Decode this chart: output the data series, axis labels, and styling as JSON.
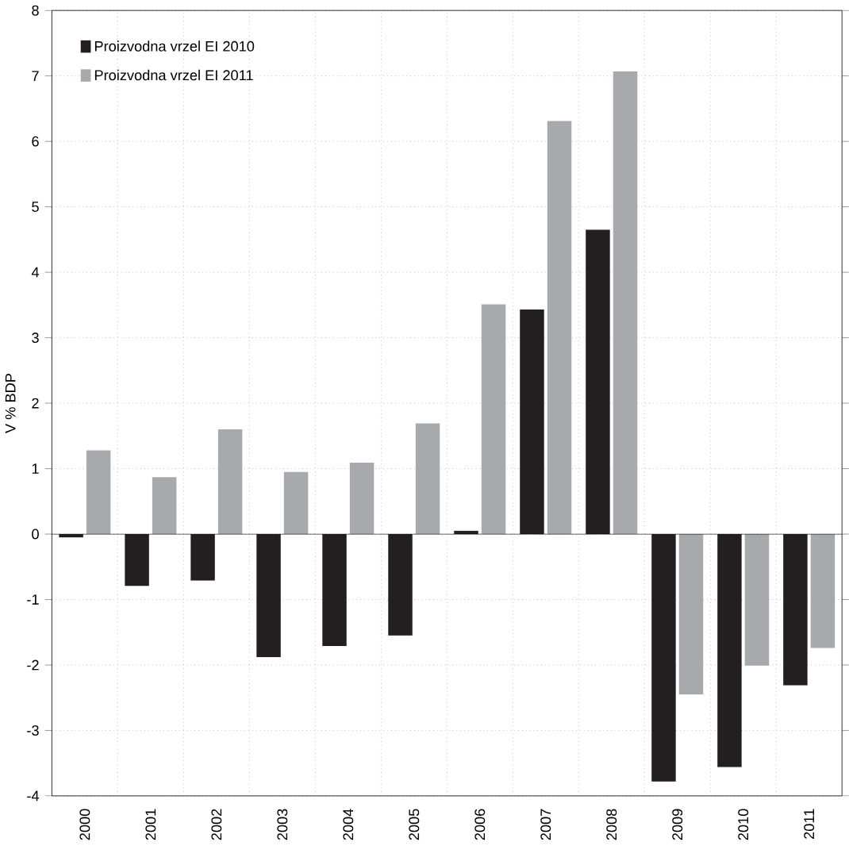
{
  "chart_data": {
    "type": "bar",
    "ylabel": "V % BDP",
    "categories": [
      "2000",
      "2001",
      "2002",
      "2003",
      "2004",
      "2005",
      "2006",
      "2007",
      "2008",
      "2009",
      "2010",
      "2011"
    ],
    "series": [
      {
        "name": "Proizvodna vrzel EI 2010",
        "color": "#231f20",
        "values": [
          -0.05,
          -0.79,
          -0.71,
          -1.88,
          -1.71,
          -1.55,
          0.05,
          3.43,
          4.65,
          -3.78,
          -3.56,
          -2.31
        ]
      },
      {
        "name": "Proizvodna vrzel EI 2011",
        "color": "#a7a9ac",
        "values": [
          1.28,
          0.87,
          1.6,
          0.95,
          1.09,
          1.69,
          3.51,
          6.31,
          7.07,
          -2.45,
          -2.01,
          -1.74
        ]
      }
    ],
    "ylim": [
      -4,
      8
    ],
    "yticks": [
      -4,
      -3,
      -2,
      -1,
      0,
      1,
      2,
      3,
      4,
      5,
      6,
      7,
      8
    ],
    "grid": true,
    "legend": "top left"
  }
}
